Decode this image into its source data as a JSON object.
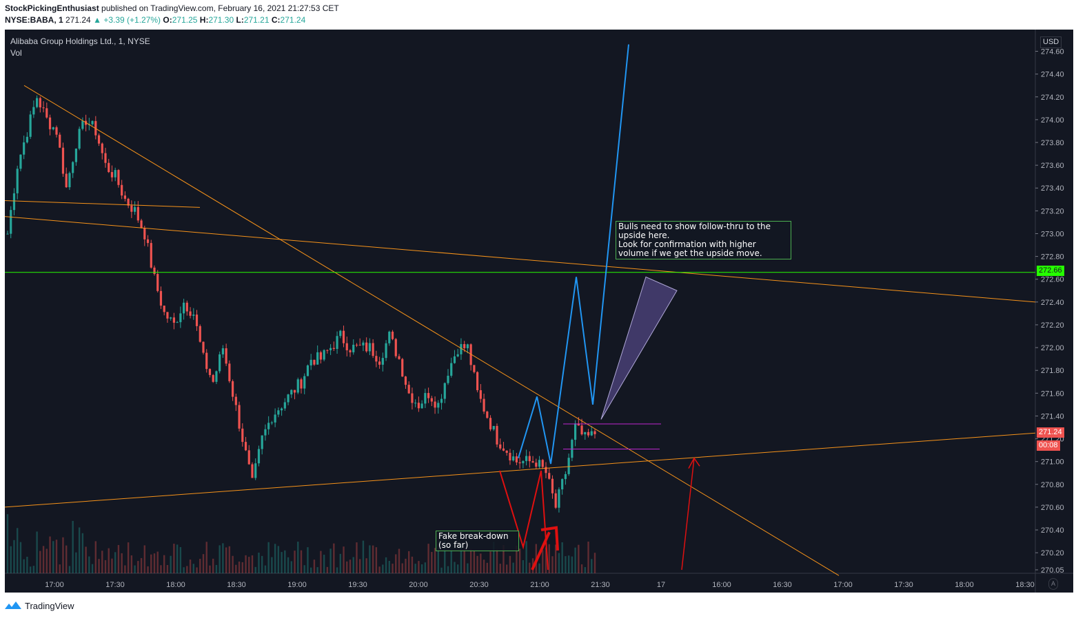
{
  "header": {
    "author": "StockPickingEnthusiast",
    "published_text": "published on TradingView.com, February 16, 2021 21:27:53 CET",
    "symbol": "NYSE:BABA, 1",
    "last": "271.24",
    "change": "+3.39 (+1.27%)",
    "open_label": "O:",
    "open": "271.25",
    "high_label": "H:",
    "high": "271.30",
    "low_label": "L:",
    "low": "271.21",
    "close_label": "C:",
    "close": "271.24"
  },
  "pane": {
    "title": "Alibaba Group Holdings Ltd., 1, NYSE",
    "volume_label": "Vol",
    "currency": "USD",
    "auto_label": "A"
  },
  "footer": {
    "brand": "TradingView",
    "logo_icon": "tradingview-logo-icon"
  },
  "colors": {
    "background": "#131722",
    "up": "#26a69a",
    "down": "#ef5350",
    "trendline": "#f7931a",
    "blue_path": "#2196f3",
    "resistance": "#26ff00",
    "range_lines": "#c026d3",
    "arrows": "#e01010"
  },
  "chart_data": {
    "type": "candlestick",
    "symbol": "NYSE:BABA",
    "interval": "1",
    "title": "Alibaba Group Holdings Ltd., 1, NYSE",
    "y_axis": {
      "side": "right",
      "range": [
        270.0,
        274.66
      ],
      "ticks": [
        "274.60",
        "274.40",
        "274.20",
        "274.00",
        "273.80",
        "273.60",
        "273.40",
        "273.20",
        "273.00",
        "272.80",
        "272.60",
        "272.40",
        "272.20",
        "272.00",
        "271.80",
        "271.60",
        "271.40",
        "271.20",
        "271.00",
        "270.80",
        "270.60",
        "270.40",
        "270.20",
        "270.05"
      ]
    },
    "x_axis": {
      "ticks": [
        "17:00",
        "17:30",
        "18:00",
        "18:30",
        "19:00",
        "19:30",
        "20:00",
        "20:30",
        "21:00",
        "21:30",
        "17",
        "16:00",
        "16:30",
        "17:00",
        "17:30",
        "18:00",
        "18:30"
      ]
    },
    "last_price": {
      "value": 271.24,
      "label": "271.24",
      "countdown": "00:08"
    },
    "resistance": {
      "value": 272.66,
      "label": "272.66"
    },
    "price_path": [
      [
        0,
        273.0
      ],
      [
        2,
        273.6
      ],
      [
        4,
        273.9
      ],
      [
        6,
        274.2
      ],
      [
        8,
        274.0
      ],
      [
        10,
        273.9
      ],
      [
        12,
        273.4
      ],
      [
        14,
        273.8
      ],
      [
        16,
        274.0
      ],
      [
        18,
        273.9
      ],
      [
        20,
        273.6
      ],
      [
        22,
        273.5
      ],
      [
        24,
        273.3
      ],
      [
        26,
        273.2
      ],
      [
        28,
        273.0
      ],
      [
        30,
        272.6
      ],
      [
        32,
        272.3
      ],
      [
        34,
        272.2
      ],
      [
        36,
        272.4
      ],
      [
        38,
        272.3
      ],
      [
        40,
        271.9
      ],
      [
        42,
        271.7
      ],
      [
        44,
        272.0
      ],
      [
        46,
        271.6
      ],
      [
        48,
        271.2
      ],
      [
        50,
        270.8
      ],
      [
        52,
        271.2
      ],
      [
        54,
        271.4
      ],
      [
        56,
        271.5
      ],
      [
        58,
        271.6
      ],
      [
        60,
        271.7
      ],
      [
        62,
        271.9
      ],
      [
        64,
        271.9
      ],
      [
        66,
        272.0
      ],
      [
        68,
        272.1
      ],
      [
        70,
        272.0
      ],
      [
        72,
        272.0
      ],
      [
        74,
        272.0
      ],
      [
        76,
        271.9
      ],
      [
        78,
        272.1
      ],
      [
        80,
        271.9
      ],
      [
        82,
        271.6
      ],
      [
        84,
        271.5
      ],
      [
        86,
        271.6
      ],
      [
        88,
        271.5
      ],
      [
        90,
        271.8
      ],
      [
        92,
        272.0
      ],
      [
        94,
        272.0
      ],
      [
        96,
        271.6
      ],
      [
        98,
        271.4
      ],
      [
        100,
        271.2
      ],
      [
        102,
        271.1
      ],
      [
        104,
        271.0
      ],
      [
        106,
        271.0
      ],
      [
        108,
        271.0
      ],
      [
        110,
        270.9
      ],
      [
        112,
        270.6
      ],
      [
        114,
        270.9
      ],
      [
        116,
        271.3
      ],
      [
        118,
        271.2
      ],
      [
        120,
        271.24
      ]
    ],
    "annotations": [
      {
        "type": "text",
        "text_lines": [
          "Bulls need to show follow-thru to the",
          "upside here.",
          "Look for confirmation with higher",
          "volume if we get the upside move."
        ]
      },
      {
        "type": "text",
        "text_lines": [
          "Fake break-down",
          "(so far)"
        ]
      }
    ]
  }
}
